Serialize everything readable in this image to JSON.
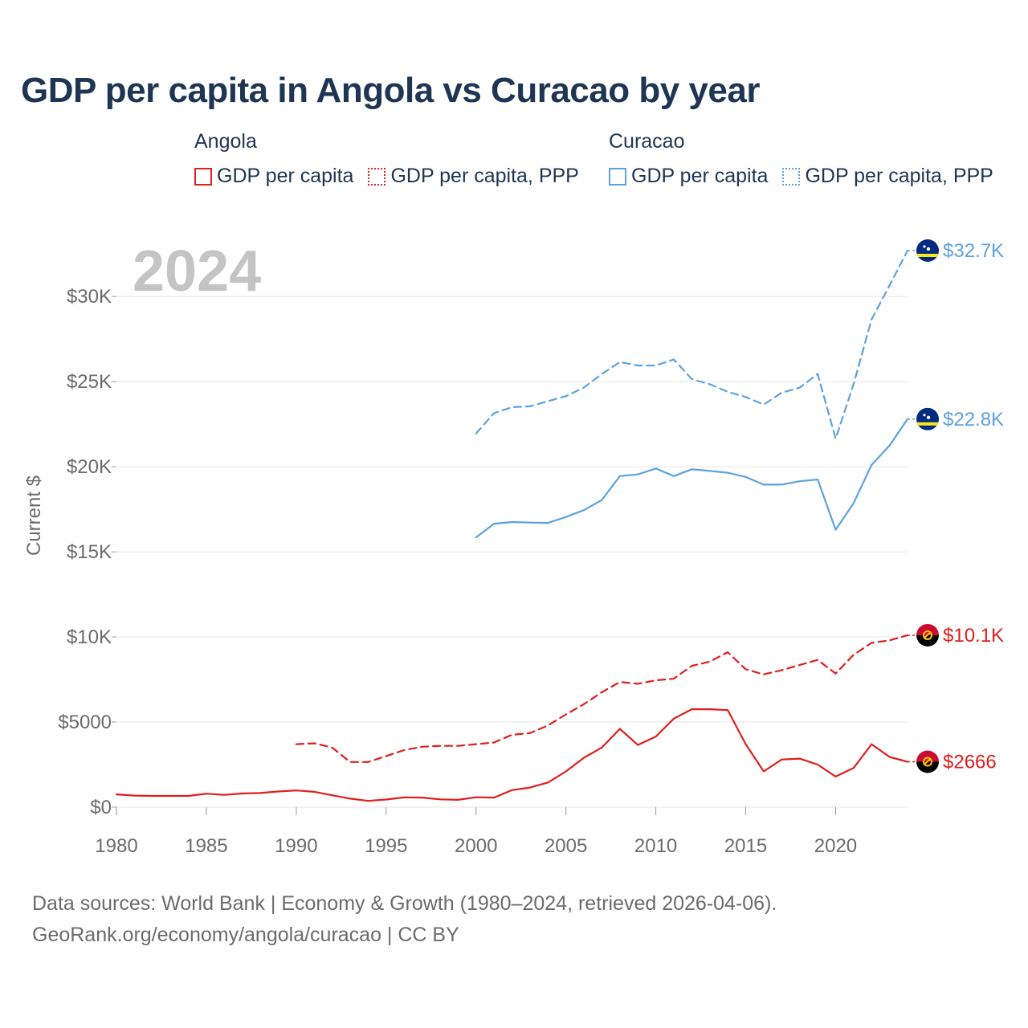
{
  "title": "GDP per capita in Angola vs Curacao by year",
  "legend": {
    "angola": {
      "name": "Angola",
      "items": [
        "GDP per capita",
        "GDP per capita, PPP"
      ]
    },
    "curacao": {
      "name": "Curacao",
      "items": [
        "GDP per capita",
        "GDP per capita, PPP"
      ]
    }
  },
  "colors": {
    "angola": "#e01e1e",
    "curacao": "#5ca2e0",
    "title": "#1f3554",
    "year_watermark": "#c4c4c4"
  },
  "footer": {
    "line1": "Data sources: World Bank | Economy & Growth (1980–2024, retrieved 2026-04-06).",
    "line2": "GeoRank.org/economy/angola/curacao | CC BY"
  },
  "chart_data": {
    "type": "line",
    "year_label": "2024",
    "ylabel": "Current $",
    "xlim": [
      1980,
      2024
    ],
    "ylim": [
      0,
      32700
    ],
    "xticks": [
      1980,
      1985,
      1990,
      1995,
      2000,
      2005,
      2010,
      2015,
      2020
    ],
    "xtick_labels": [
      "1980",
      "1985",
      "1990",
      "1995",
      "2000",
      "2005",
      "2010",
      "2015",
      "2020"
    ],
    "yticks": [
      0,
      5000,
      10000,
      15000,
      20000,
      25000,
      30000
    ],
    "ytick_labels": [
      "$0",
      "$5000",
      "$10K",
      "$15K",
      "$20K",
      "$25K",
      "$30K"
    ],
    "series": [
      {
        "name": "Angola GDP per capita",
        "country": "angola",
        "style": "solid",
        "end_label": "$2666",
        "x": [
          1980,
          1981,
          1982,
          1983,
          1984,
          1985,
          1986,
          1987,
          1988,
          1989,
          1990,
          1991,
          1992,
          1993,
          1994,
          1995,
          1996,
          1997,
          1998,
          1999,
          2000,
          2001,
          2002,
          2003,
          2004,
          2005,
          2006,
          2007,
          2008,
          2009,
          2010,
          2011,
          2012,
          2013,
          2014,
          2015,
          2016,
          2017,
          2018,
          2019,
          2020,
          2021,
          2022,
          2023,
          2024
        ],
        "y": [
          750,
          680,
          660,
          660,
          660,
          790,
          720,
          800,
          830,
          920,
          980,
          900,
          700,
          500,
          370,
          450,
          570,
          560,
          460,
          430,
          580,
          560,
          1000,
          1150,
          1450,
          2100,
          2900,
          3500,
          4600,
          3650,
          4150,
          5200,
          5750,
          5750,
          5700,
          3700,
          2100,
          2800,
          2850,
          2500,
          1800,
          2300,
          3700,
          2950,
          2666
        ]
      },
      {
        "name": "Angola GDP per capita, PPP",
        "country": "angola",
        "style": "dashed",
        "end_label": "$10.1K",
        "x": [
          1990,
          1991,
          1992,
          1993,
          1994,
          1995,
          1996,
          1997,
          1998,
          1999,
          2000,
          2001,
          2002,
          2003,
          2004,
          2005,
          2006,
          2007,
          2008,
          2009,
          2010,
          2011,
          2012,
          2013,
          2014,
          2015,
          2016,
          2017,
          2018,
          2019,
          2020,
          2021,
          2022,
          2023,
          2024
        ],
        "y": [
          3700,
          3750,
          3500,
          2650,
          2650,
          3000,
          3350,
          3550,
          3600,
          3600,
          3700,
          3800,
          4250,
          4350,
          4800,
          5450,
          6050,
          6750,
          7350,
          7250,
          7450,
          7550,
          8300,
          8550,
          9100,
          8100,
          7800,
          8050,
          8350,
          8650,
          7850,
          8950,
          9650,
          9800,
          10100
        ]
      },
      {
        "name": "Curacao GDP per capita",
        "country": "curacao",
        "style": "solid",
        "end_label": "$22.8K",
        "x": [
          2000,
          2001,
          2002,
          2003,
          2004,
          2005,
          2006,
          2007,
          2008,
          2009,
          2010,
          2011,
          2012,
          2013,
          2014,
          2015,
          2016,
          2017,
          2018,
          2019,
          2020,
          2021,
          2022,
          2023,
          2024
        ],
        "y": [
          15850,
          16650,
          16750,
          16720,
          16700,
          17050,
          17450,
          18050,
          19450,
          19550,
          19900,
          19450,
          19850,
          19750,
          19650,
          19400,
          18950,
          18950,
          19150,
          19250,
          16300,
          17850,
          20100,
          21250,
          22800
        ]
      },
      {
        "name": "Curacao GDP per capita, PPP",
        "country": "curacao",
        "style": "dashed",
        "end_label": "$32.7K",
        "x": [
          2000,
          2001,
          2002,
          2003,
          2004,
          2005,
          2006,
          2007,
          2008,
          2009,
          2010,
          2011,
          2012,
          2013,
          2014,
          2015,
          2016,
          2017,
          2018,
          2019,
          2020,
          2021,
          2022,
          2023,
          2024
        ],
        "y": [
          21950,
          23150,
          23500,
          23550,
          23850,
          24150,
          24650,
          25450,
          26150,
          25950,
          25950,
          26300,
          25150,
          24850,
          24400,
          24100,
          23650,
          24350,
          24650,
          25450,
          21650,
          24850,
          28650,
          30650,
          32700
        ]
      }
    ]
  }
}
